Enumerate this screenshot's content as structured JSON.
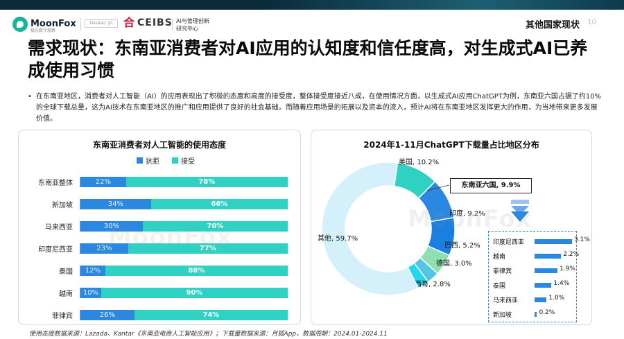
{
  "header": {
    "logo_name": "MoonFox",
    "logo_sub": "极光数字观察",
    "nasdaq": "Nasdaq: JG",
    "ceibs_word": "CEIBS",
    "ceibs_sub_line1": "AI与管理创新",
    "ceibs_sub_line2": "研究中心",
    "section_title": "其他国家现状",
    "page_number": "10"
  },
  "headline": "需求现状：东南亚消费者对AI应用的认知度和信任度高，对生成式AI已养成使用习惯",
  "bullet": "在东南亚地区，消费者对人工智能（AI）的应用表现出了积极的态度和高度的接受度，整体接受度接近八成，在使用情况方面，以生成式AI应用ChatGPT为例，东南亚六国占据了约10%的全球下载总量，这为AI技术在东南亚地区的推广和应用提供了良好的社会基础。而随着应用场景的拓展以及资本的流入，预计AI将在东南亚地区发挥更大的作用，为当地带来更多发展价值。",
  "left_panel": {
    "title": "东南亚消费者对人工智能的使用态度"
  },
  "right_panel": {
    "title": "2024年1-11月ChatGPT下载量占比地区分布",
    "callout": "东南亚六国, 9.9%"
  },
  "watermark": "MoonFox",
  "footer": "使用态度数据来源：Lazada、Kantar《东南亚电商人工智能应用》；下载量数据来源：月狐App，数据周期：2024.01-2024.11",
  "colors": {
    "reject": "#2b88e0",
    "accept": "#2fd2c2",
    "dark": "#0b2b3b"
  },
  "chart_data": [
    {
      "type": "bar",
      "orientation": "horizontal-stacked-100",
      "title": "东南亚消费者对人工智能的使用态度",
      "legend_position": "top",
      "categories": [
        "东南亚整体",
        "新加坡",
        "马来西亚",
        "印度尼西亚",
        "泰国",
        "越南",
        "菲律宾"
      ],
      "series": [
        {
          "name": "抗拒",
          "values": [
            22,
            34,
            30,
            23,
            12,
            10,
            26
          ],
          "labels": [
            "22%",
            "34%",
            "30%",
            "23%",
            "12%",
            "10%",
            "26%"
          ],
          "color": "#2b88e0"
        },
        {
          "name": "接受",
          "values": [
            78,
            66,
            70,
            77,
            88,
            90,
            74
          ],
          "labels": [
            "78%",
            "66%",
            "70%",
            "77%",
            "88%",
            "90%",
            "74%"
          ],
          "color": "#2fd2c2"
        }
      ],
      "unit": "%"
    },
    {
      "type": "pie",
      "variant": "donut",
      "title": "2024年1-11月ChatGPT下载量占比地区分布",
      "slices": [
        {
          "name": "美国",
          "value": 10.2,
          "label": "美国, 10.2%",
          "color": "#2fd2c2"
        },
        {
          "name": "东南亚六国",
          "value": 9.9,
          "label": "东南亚六国, 9.9%",
          "color": "#2b88e0"
        },
        {
          "name": "印度",
          "value": 9.2,
          "label": "印度, 9.2%",
          "color": "#1a7fe0"
        },
        {
          "name": "巴西",
          "value": 5.2,
          "label": "巴西, 5.2%",
          "color": "#8de0b2"
        },
        {
          "name": "德国",
          "value": 3.0,
          "label": "德国, 3.0%",
          "color": "#52c6e4"
        },
        {
          "name": "墨西哥",
          "value": 2.8,
          "label": "墨西哥, 2.8%",
          "color": "#24d6f0"
        },
        {
          "name": "其他",
          "value": 59.7,
          "label": "其他, 59.7%",
          "color": "#d4f0fb"
        }
      ],
      "unit": "%"
    },
    {
      "type": "bar",
      "orientation": "horizontal",
      "categories": [
        "印度尼西亚",
        "越南",
        "菲律宾",
        "泰国",
        "马来西亚",
        "新加坡"
      ],
      "values": [
        3.1,
        2.2,
        1.9,
        1.4,
        1.0,
        0.2
      ],
      "labels": [
        "3.1%",
        "2.2%",
        "1.9%",
        "1.4%",
        "1.0%",
        "0.2%"
      ],
      "color": "#2b88e0",
      "unit": "%"
    }
  ]
}
